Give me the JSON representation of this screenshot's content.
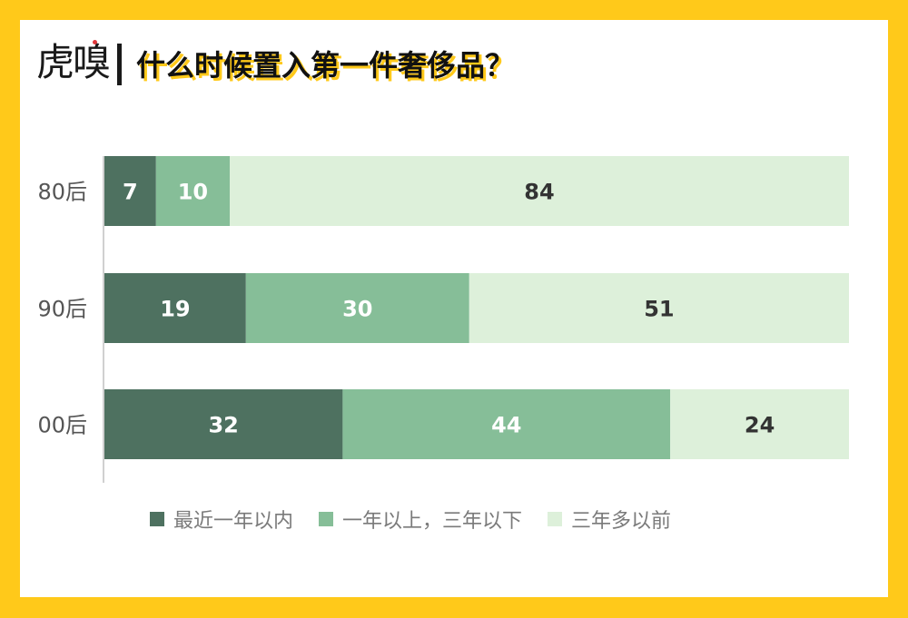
{
  "header": {
    "logo_text": "虎嗅",
    "title": "什么时候置入第一件奢侈品？"
  },
  "colors": {
    "background": "#FFC91A",
    "series": [
      "#4E7160",
      "#86BE98",
      "#DDF0DA"
    ],
    "label_light": "#ffffff",
    "label_dark": "#333333"
  },
  "chart_data": {
    "type": "bar",
    "orientation": "horizontal",
    "stacked": true,
    "categories": [
      "80后",
      "90后",
      "00后"
    ],
    "series": [
      {
        "name": "最近一年以内",
        "values": [
          7,
          19,
          32
        ]
      },
      {
        "name": "一年以上，三年以下",
        "values": [
          10,
          30,
          44
        ]
      },
      {
        "name": "三年多以前",
        "values": [
          84,
          51,
          24
        ]
      }
    ],
    "title": "什么时候置入第一件奢侈品？",
    "xlabel": "",
    "ylabel": "",
    "xlim": [
      0,
      100
    ],
    "grid": false,
    "legend_position": "bottom"
  }
}
